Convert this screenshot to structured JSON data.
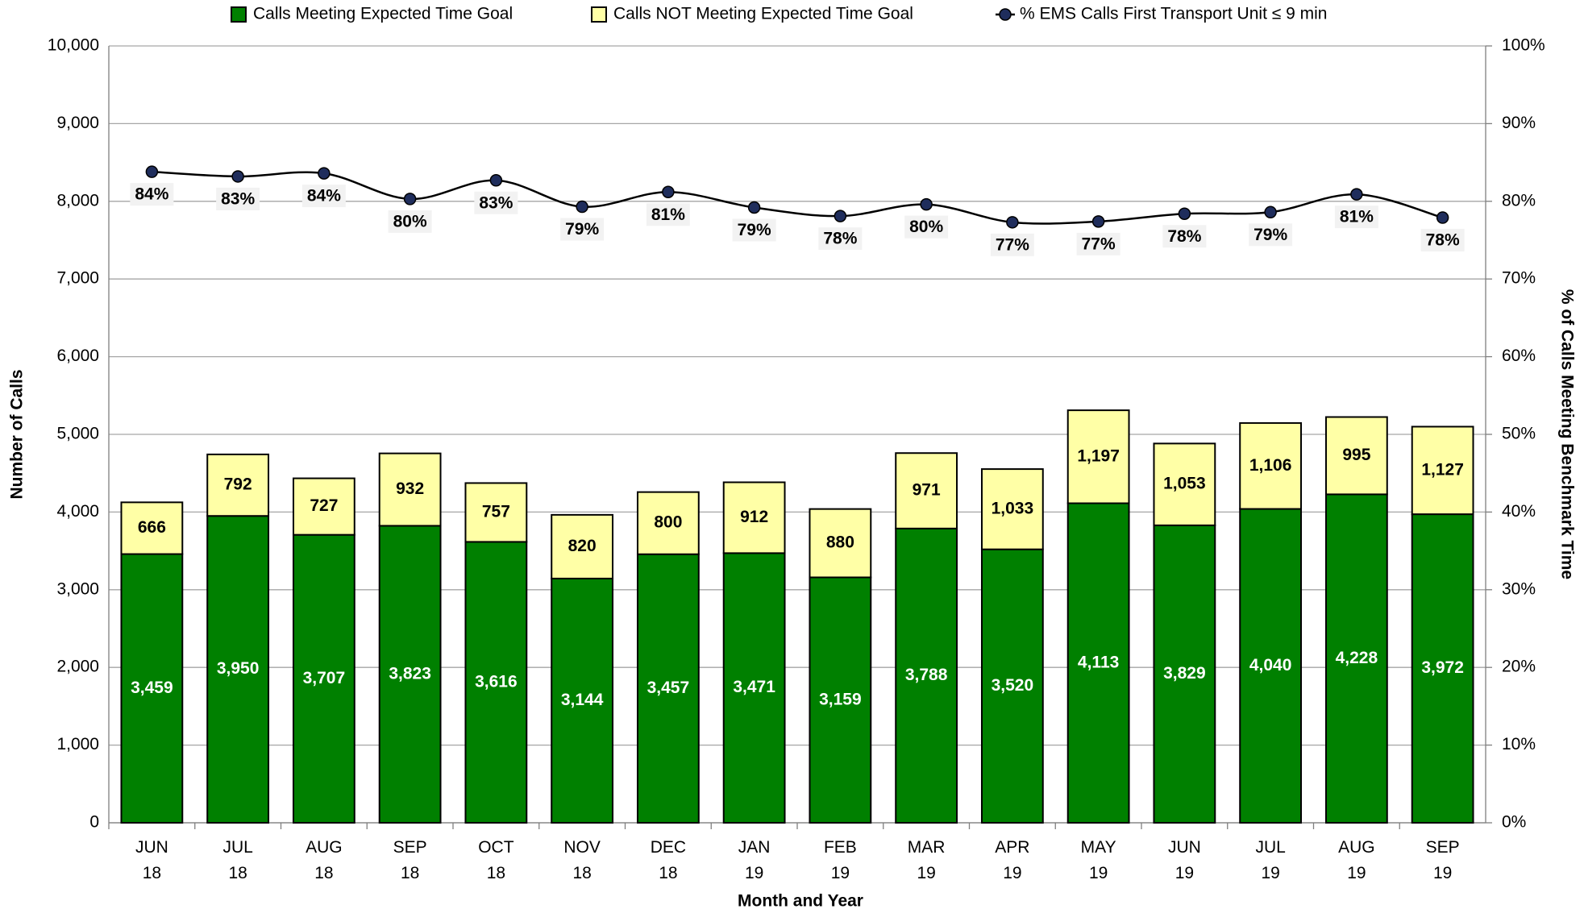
{
  "chart_data": {
    "type": "bar",
    "x_label": "Month and Year",
    "y_label": "Number of Calls",
    "y2_label": "% of Calls Meeting Benchmark Time",
    "categories": [
      "JUN 18",
      "JUL 18",
      "AUG 18",
      "SEP 18",
      "OCT 18",
      "NOV 18",
      "DEC 18",
      "JAN 19",
      "FEB 19",
      "MAR 19",
      "APR 19",
      "MAY 19",
      "JUN 19",
      "JUL 19",
      "AUG 19",
      "SEP 19"
    ],
    "ylim": [
      0,
      10000
    ],
    "yticks": [
      0,
      {
        "value": 1000,
        "label": "1,000"
      },
      {
        "value": 2000,
        "label": "2,000"
      },
      {
        "value": 3000,
        "label": "3,000"
      },
      {
        "value": 4000,
        "label": "4,000"
      },
      {
        "value": 5000,
        "label": "5,000"
      },
      {
        "value": 6000,
        "label": "6,000"
      },
      {
        "value": 7000,
        "label": "7,000"
      },
      {
        "value": 8000,
        "label": "8,000"
      },
      {
        "value": 9000,
        "label": "9,000"
      },
      {
        "value": 10000,
        "label": "10,000"
      }
    ],
    "y2lim": [
      0,
      100
    ],
    "y2ticks": [
      {
        "value": 0,
        "label": "0%"
      },
      {
        "value": 10,
        "label": "10%"
      },
      {
        "value": 20,
        "label": "20%"
      },
      {
        "value": 30,
        "label": "30%"
      },
      {
        "value": 40,
        "label": "40%"
      },
      {
        "value": 50,
        "label": "50%"
      },
      {
        "value": 60,
        "label": "60%"
      },
      {
        "value": 70,
        "label": "70%"
      },
      {
        "value": 80,
        "label": "80%"
      },
      {
        "value": 90,
        "label": "90%"
      },
      {
        "value": 100,
        "label": "100%"
      }
    ],
    "grid": true,
    "series": [
      {
        "name": "Calls Meeting Expected Time Goal",
        "type": "bar",
        "color": "#008000",
        "values": [
          3459,
          3950,
          3707,
          3823,
          3616,
          3144,
          3457,
          3471,
          3159,
          3788,
          3520,
          4113,
          3829,
          4040,
          4228,
          3972
        ],
        "value_labels": [
          "3,459",
          "3,950",
          "3,707",
          "3,823",
          "3,616",
          "3,144",
          "3,457",
          "3,471",
          "3,159",
          "3,788",
          "3,520",
          "4,113",
          "3,829",
          "4,040",
          "4,228",
          "3,972"
        ]
      },
      {
        "name": "Calls NOT Meeting Expected Time Goal",
        "type": "bar",
        "color": "#ffffa6",
        "values": [
          666,
          792,
          727,
          932,
          757,
          820,
          800,
          912,
          880,
          971,
          1033,
          1197,
          1053,
          1106,
          995,
          1127
        ],
        "value_labels": [
          "666",
          "792",
          "727",
          "932",
          "757",
          "820",
          "800",
          "912",
          "880",
          "971",
          "1,033",
          "1,197",
          "1,053",
          "1,106",
          "995",
          "1,127"
        ]
      },
      {
        "name": "% EMS Calls First Transport Unit ≤ 9 min",
        "type": "line",
        "axis": "y2",
        "color": "#000000",
        "marker_color": "#1f2d5c",
        "values": [
          83.8,
          83.2,
          83.6,
          80.3,
          82.7,
          79.3,
          81.2,
          79.2,
          78.1,
          79.6,
          77.3,
          77.4,
          78.4,
          78.6,
          80.9,
          77.9
        ],
        "value_labels": [
          "84%",
          "83%",
          "84%",
          "80%",
          "83%",
          "79%",
          "81%",
          "79%",
          "78%",
          "80%",
          "77%",
          "77%",
          "78%",
          "79%",
          "81%",
          "78%"
        ]
      }
    ]
  }
}
